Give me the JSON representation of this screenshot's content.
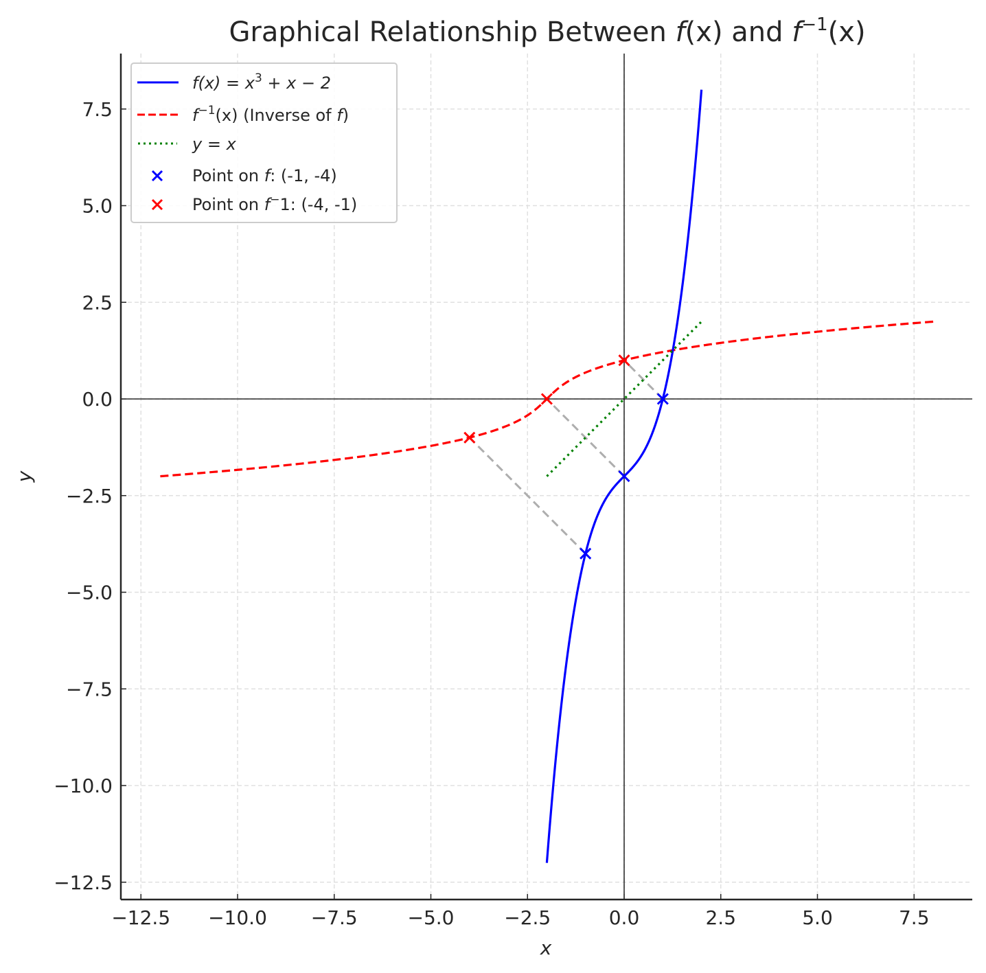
{
  "chart_data": {
    "type": "line",
    "title": "Graphical Relationship Between f(x) and f⁻¹(x)",
    "title_parts": {
      "prefix": "Graphical Relationship Between ",
      "f1": "f",
      "x1": "(x)",
      "mid": " and ",
      "f2": "f",
      "sup": "−1",
      "x2": "(x)"
    },
    "xlabel": "x",
    "ylabel": "y",
    "xlim": [
      -13.0,
      9.0
    ],
    "ylim": [
      -13.0,
      8.9
    ],
    "grid": true,
    "legend_position": "upper left",
    "x_ticks": [
      -12.5,
      -10.0,
      -7.5,
      -5.0,
      -2.5,
      0.0,
      2.5,
      5.0,
      7.5
    ],
    "x_tick_labels": [
      "−12.5",
      "−10.0",
      "−7.5",
      "−5.0",
      "−2.5",
      "0.0",
      "2.5",
      "5.0",
      "7.5"
    ],
    "y_ticks": [
      7.5,
      5.0,
      2.5,
      0.0,
      -2.5,
      -5.0,
      -7.5,
      -10.0,
      -12.5
    ],
    "y_tick_labels": [
      "7.5",
      "5.0",
      "2.5",
      "0.0",
      "−2.5",
      "−5.0",
      "−7.5",
      "−10.0",
      "−12.5"
    ],
    "series": [
      {
        "name": "f(x) = x³ + x − 2",
        "style": "solid",
        "color": "#0000ff",
        "x_range": [
          -2,
          2
        ],
        "x": [
          -2,
          -1.5,
          -1,
          -0.5,
          0,
          0.5,
          1,
          1.5,
          2
        ],
        "values": [
          -12,
          -6.875,
          -4,
          -2.625,
          -2,
          -1.375,
          0,
          2.875,
          8
        ]
      },
      {
        "name": "f⁻¹(x) (Inverse of f)",
        "style": "dashed",
        "color": "#ff0000",
        "x_range": [
          -12,
          8
        ],
        "x": [
          -12,
          -6.875,
          -4,
          -2.625,
          -2,
          -1.375,
          0,
          2.875,
          8
        ],
        "values": [
          -2,
          -1.5,
          -1,
          -0.5,
          0,
          0.5,
          1,
          1.5,
          2
        ]
      },
      {
        "name": "y = x",
        "style": "dotted",
        "color": "#008000",
        "x": [
          -2,
          2
        ],
        "values": [
          -2,
          2
        ]
      }
    ],
    "markers": [
      {
        "name": "Point on f: (-1, -4)",
        "color": "#0000ff",
        "marker": "x",
        "points": [
          [
            -1,
            -4
          ],
          [
            0,
            -2
          ],
          [
            1,
            0
          ]
        ]
      },
      {
        "name": "Point on f^-1: (-4, -1)",
        "color": "#ff0000",
        "marker": "x",
        "points": [
          [
            -4,
            -1
          ],
          [
            -2,
            0
          ],
          [
            0,
            1
          ]
        ]
      }
    ],
    "connectors": {
      "color": "#aaaaaa",
      "style": "dashed",
      "segments": [
        [
          [
            -1,
            -4
          ],
          [
            -4,
            -1
          ]
        ],
        [
          [
            0,
            -2
          ],
          [
            -2,
            0
          ]
        ],
        [
          [
            1,
            0
          ],
          [
            0,
            1
          ]
        ]
      ]
    },
    "reference_lines": {
      "x0": true,
      "y0": true,
      "color": "#000000"
    }
  },
  "legend": {
    "entries": [
      {
        "label_parts": [
          "f",
          "(x) = x",
          "3",
          " + x − 2"
        ],
        "color": "#0000ff",
        "kind": "solid"
      },
      {
        "label_parts": [
          "f",
          "−1",
          "(x) (Inverse of ",
          "f",
          ")"
        ],
        "color": "#ff0000",
        "kind": "dashed"
      },
      {
        "label_parts": [
          "y = x"
        ],
        "color": "#008000",
        "kind": "dotted"
      },
      {
        "label_parts": [
          "Point on ",
          "f",
          ": (-1, -4)"
        ],
        "color": "#0000ff",
        "kind": "marker"
      },
      {
        "label_parts": [
          "Point on ",
          "f",
          "−",
          "1: (-4, -1)"
        ],
        "color": "#ff0000",
        "kind": "marker"
      }
    ]
  }
}
